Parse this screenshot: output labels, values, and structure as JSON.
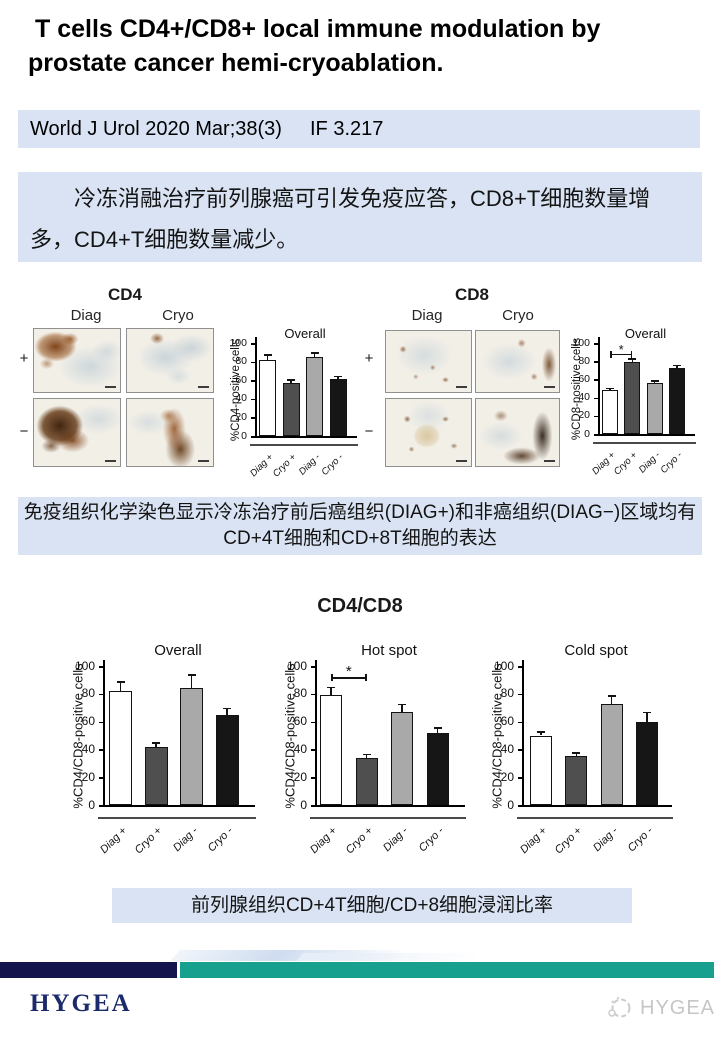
{
  "page": {
    "title_line1": "T cells CD4+/CD8+ local immune modulation by",
    "title_line2": "prostate cancer hemi-cryoablation.",
    "citation": "World J Urol 2020 Mar;38(3)",
    "impact_factor": "IF 3.217",
    "summary_cn": "冷冻消融治疗前列腺癌可引发免疫应答，CD8+T细胞数量增多，CD4+T细胞数量减少。",
    "section_title": "CD4/CD8",
    "caption_ihc_line1": "免疫组织化学染色显示冷冻治疗前后癌组织(DIAG+)和非癌组织(DIAG−)区域均有",
    "caption_ihc_line2": "CD+4T细胞和CD+8T细胞的表达",
    "caption_ratio": "前列腺组织CD+4T细胞/CD+8细胞浸润比率"
  },
  "figure_panels": {
    "cd4": {
      "title": "CD4",
      "col_labels": [
        "Diag",
        "Cryo"
      ],
      "row_labels": [
        "+",
        "−"
      ]
    },
    "cd8": {
      "title": "CD8",
      "col_labels": [
        "Diag",
        "Cryo"
      ],
      "row_labels": [
        "+",
        "−"
      ]
    }
  },
  "footer": {
    "brand": "HYGEA",
    "watermark": "HYGEA",
    "logo_icon": "hygea-logo-icon"
  },
  "colors": {
    "highlight_bg": "#d9e3f3",
    "navy_bar": "#15154e",
    "teal_bar": "#17a08e",
    "brand_navy": "#1b2a6b",
    "bar_fills": [
      "#ffffff",
      "#4f4f4f",
      "#a9a9a9",
      "#161616"
    ]
  },
  "chart_data": [
    {
      "id": "cd4-overall",
      "type": "bar",
      "title": "Overall",
      "ylabel": "%CD4-positive cells",
      "categories": [
        "Diag +",
        "Cryo +",
        "Diag -",
        "Cryo -"
      ],
      "values": [
        82,
        57,
        85,
        61
      ],
      "errors": [
        6,
        4,
        5,
        4
      ],
      "ylim": [
        0,
        100
      ],
      "yticks": [
        0,
        20,
        40,
        60,
        80,
        100
      ],
      "grid": false,
      "legend": false,
      "significance": null
    },
    {
      "id": "cd8-overall",
      "type": "bar",
      "title": "Overall",
      "ylabel": "%CD8-positive cells",
      "categories": [
        "Diag +",
        "Cryo +",
        "Diag -",
        "Cryo -"
      ],
      "values": [
        48,
        79,
        56,
        72
      ],
      "errors": [
        3,
        4,
        3,
        4
      ],
      "ylim": [
        0,
        100
      ],
      "yticks": [
        0,
        20,
        40,
        60,
        80,
        100
      ],
      "grid": false,
      "legend": false,
      "significance": {
        "between": [
          0,
          1
        ],
        "label": "*",
        "y": 88
      }
    },
    {
      "id": "cd4cd8-overall",
      "type": "bar",
      "title": "Overall",
      "ylabel": "%CD4/CD8-positive cells",
      "categories": [
        "Diag +",
        "Cryo +",
        "Diag -",
        "Cryo -"
      ],
      "values": [
        82,
        42,
        84,
        65
      ],
      "errors": [
        7,
        3,
        10,
        5
      ],
      "ylim": [
        0,
        100
      ],
      "yticks": [
        0,
        20,
        40,
        60,
        80,
        100
      ],
      "grid": false,
      "legend": false,
      "significance": null
    },
    {
      "id": "cd4cd8-hotspot",
      "type": "bar",
      "title": "Hot spot",
      "ylabel": "%CD4/CD8-positive cells",
      "categories": [
        "Diag +",
        "Cryo +",
        "Diag -",
        "Cryo -"
      ],
      "values": [
        79,
        34,
        67,
        52
      ],
      "errors": [
        6,
        3,
        6,
        4
      ],
      "ylim": [
        0,
        100
      ],
      "yticks": [
        0,
        20,
        40,
        60,
        80,
        100
      ],
      "grid": false,
      "legend": false,
      "significance": {
        "between": [
          0,
          1
        ],
        "label": "*",
        "y": 92
      }
    },
    {
      "id": "cd4cd8-coldspot",
      "type": "bar",
      "title": "Cold spot",
      "ylabel": "%CD4/CD8-positive cells",
      "categories": [
        "Diag +",
        "Cryo +",
        "Diag -",
        "Cryo -"
      ],
      "values": [
        50,
        35,
        73,
        60
      ],
      "errors": [
        3,
        3,
        6,
        7
      ],
      "ylim": [
        0,
        100
      ],
      "yticks": [
        0,
        20,
        40,
        60,
        80,
        100
      ],
      "grid": false,
      "legend": false,
      "significance": null
    }
  ]
}
